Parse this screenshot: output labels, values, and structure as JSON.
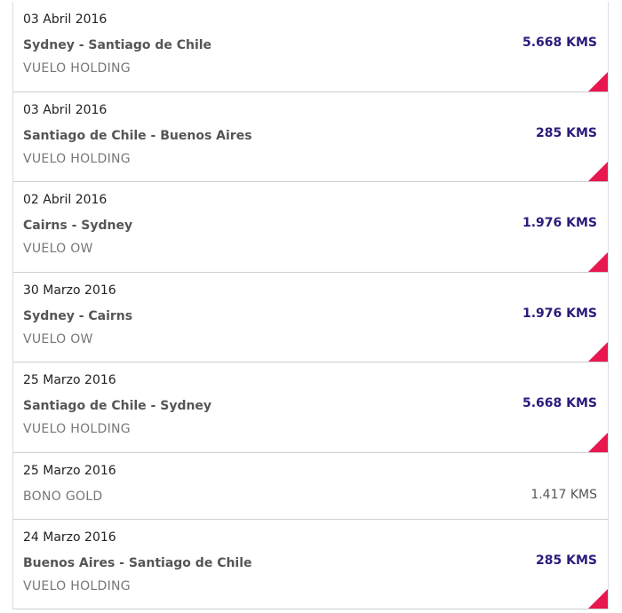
{
  "items": [
    {
      "date": "03 Abril 2016",
      "route": "Sydney - Santiago de Chile",
      "type": "VUELO HOLDING",
      "kms": "5.668 KMS"
    },
    {
      "date": "03 Abril 2016",
      "route": "Santiago de Chile - Buenos Aires",
      "type": "VUELO HOLDING",
      "kms": "285 KMS"
    },
    {
      "date": "02 Abril 2016",
      "route": "Cairns - Sydney",
      "type": "VUELO OW",
      "kms": "1.976 KMS"
    },
    {
      "date": "30 Marzo 2016",
      "route": "Sydney - Cairns",
      "type": "VUELO OW",
      "kms": "1.976 KMS"
    },
    {
      "date": "25 Marzo 2016",
      "route": "Santiago de Chile - Sydney",
      "type": "VUELO HOLDING",
      "kms": "5.668 KMS"
    },
    {
      "date": "25 Marzo 2016",
      "type": "BONO GOLD",
      "kms": "1.417 KMS"
    },
    {
      "date": "24 Marzo 2016",
      "route": "Buenos Aires - Santiago de Chile",
      "type": "VUELO HOLDING",
      "kms": "285 KMS"
    }
  ]
}
